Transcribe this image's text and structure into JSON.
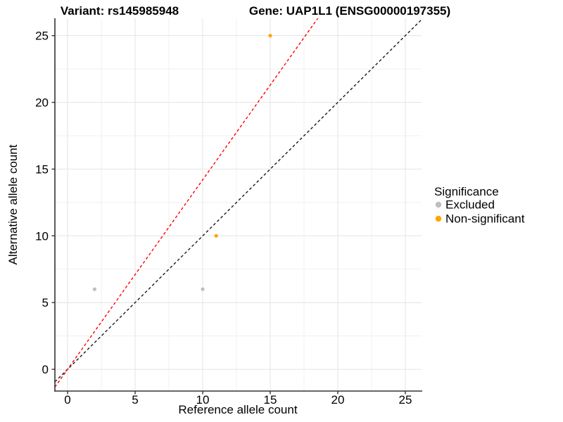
{
  "titles": {
    "variant": "Variant: rs145985948",
    "gene": "Gene: UAP1L1 (ENSG00000197355)"
  },
  "chart_data": {
    "type": "scatter",
    "xlabel": "Reference allele count",
    "ylabel": "Alternative allele count",
    "x_ticks": [
      0,
      5,
      10,
      15,
      20,
      25
    ],
    "y_ticks": [
      0,
      5,
      10,
      15,
      20,
      25
    ],
    "x_minor_ticks": [
      2.5,
      7.5,
      12.5,
      17.5,
      22.5
    ],
    "y_minor_ticks": [
      2.5,
      7.5,
      12.5,
      17.5,
      22.5
    ],
    "xlim": [
      -0.94,
      26.2
    ],
    "ylim": [
      -1.63,
      26.3
    ],
    "grid": true,
    "legend_position": "right",
    "points": [
      {
        "x": 2,
        "y": 6,
        "significance": "Excluded"
      },
      {
        "x": 10,
        "y": 6,
        "significance": "Excluded"
      },
      {
        "x": 11,
        "y": 10,
        "significance": "Non-significant"
      },
      {
        "x": 15,
        "y": 25,
        "significance": "Non-significant"
      }
    ],
    "reference_lines": [
      {
        "name": "identity-line",
        "slope": 1.0,
        "intercept": 0,
        "color": "#1a1a1a",
        "style": "dashed"
      },
      {
        "name": "expected-ratio-line",
        "slope": 1.42,
        "intercept": 0,
        "color": "#fe0000",
        "style": "dashed"
      }
    ]
  },
  "legend": {
    "title": "Significance",
    "items": [
      {
        "label": "Excluded",
        "color": "#bebebe"
      },
      {
        "label": "Non-significant",
        "color": "#ffa500"
      }
    ]
  },
  "colors": {
    "grid_major": "#e4e4e4",
    "grid_minor": "#f0f0f0",
    "axis_line": "#333333",
    "text": "#000000"
  }
}
